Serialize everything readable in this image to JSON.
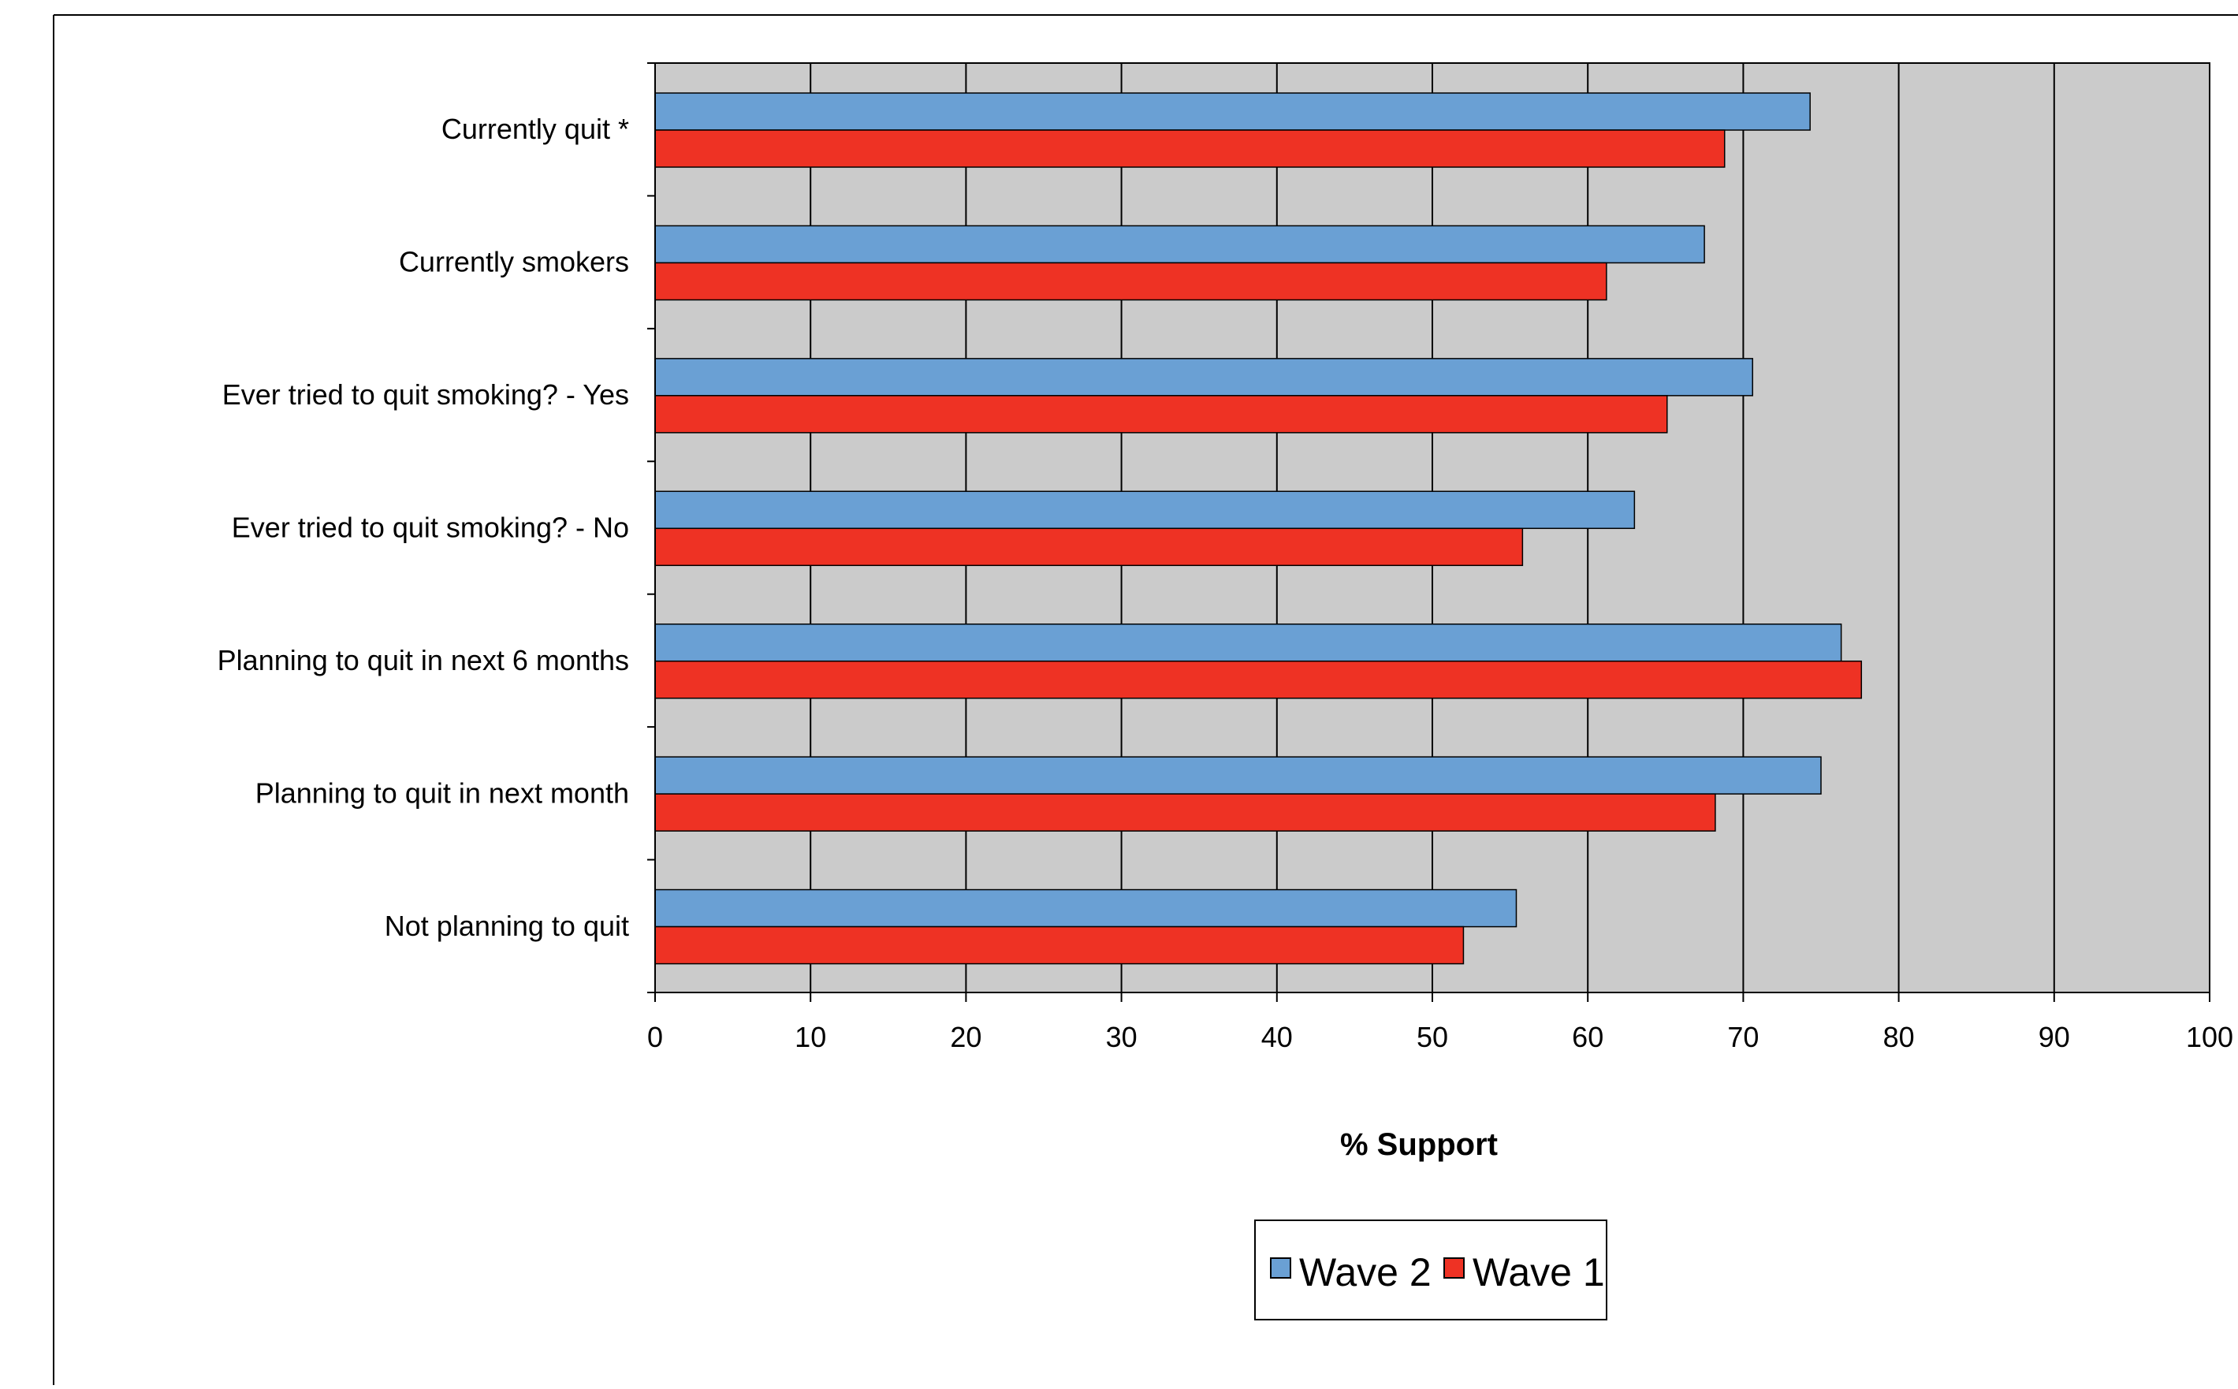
{
  "chart_data": {
    "type": "bar",
    "orientation": "horizontal",
    "categories": [
      "Currently quit *",
      "Currently smokers",
      "Ever tried to quit smoking?  - Yes",
      "Ever tried to quit smoking?  - No",
      "Planning to quit in next 6 months",
      "Planning to quit in next month",
      "Not planning to quit"
    ],
    "series": [
      {
        "name": "Wave 2",
        "color": "#6aa0d4",
        "values": [
          74.3,
          67.5,
          70.6,
          63.0,
          76.3,
          75.0,
          55.4
        ]
      },
      {
        "name": "Wave 1",
        "color": "#ee3224",
        "values": [
          68.8,
          61.2,
          65.1,
          55.8,
          77.6,
          68.2,
          52.0
        ]
      }
    ],
    "xlabel": "% Support",
    "xlim": [
      0,
      100
    ],
    "xticks": [
      0,
      10,
      20,
      30,
      40,
      50,
      60,
      70,
      80,
      90,
      100
    ],
    "plot_background": "#cbcbcb",
    "grid": "vertical",
    "legend_position": "bottom-center"
  }
}
